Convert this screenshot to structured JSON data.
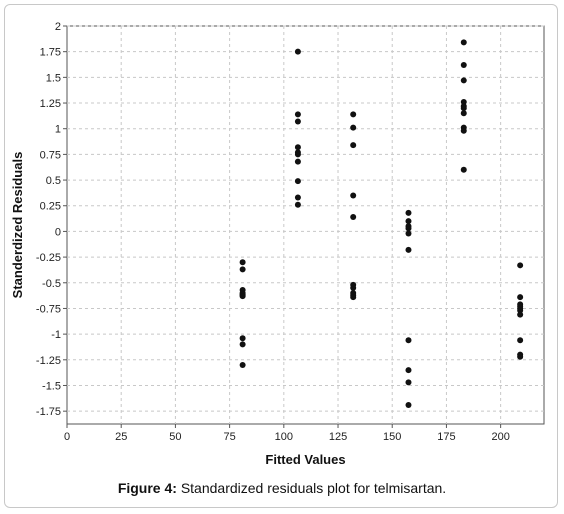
{
  "caption": {
    "label": "Figure 4:",
    "text": " Standardized residuals plot for telmisartan."
  },
  "chart_data": {
    "type": "scatter",
    "title": "",
    "xlabel": "Fitted Values",
    "ylabel": "Standerdized Residuals",
    "xlim": [
      0,
      220
    ],
    "ylim": [
      -1.875,
      2
    ],
    "x_ticks": [
      0,
      25,
      50,
      75,
      100,
      125,
      150,
      175,
      200
    ],
    "y_ticks": [
      2,
      1.75,
      1.5,
      1.25,
      1,
      0.75,
      0.5,
      0.25,
      0,
      -0.25,
      -0.5,
      -0.75,
      -1,
      -1.25,
      -1.5,
      -1.75
    ],
    "x_tick_labels": [
      "0",
      "25",
      "50",
      "75",
      "100",
      "125",
      "150",
      "175",
      "200"
    ],
    "y_tick_labels": [
      "2",
      "1.75",
      "1.5",
      "1.25",
      "1",
      "0.75",
      "0.5",
      "0.25",
      "0",
      "-0.25",
      "-0.5",
      "-0.75",
      "-1",
      "-1.25",
      "-1.5",
      "-1.75"
    ],
    "grid": true,
    "point_color": "#111111",
    "grid_color": "#c8c8c8",
    "series": [
      {
        "x": [
          81,
          81,
          81,
          81,
          81,
          81,
          81,
          81,
          81,
          81,
          106.5,
          106.5,
          106.5,
          106.5,
          106.5,
          106.5,
          106.5,
          106.5,
          106.5,
          106.5,
          132,
          132,
          132,
          132,
          132,
          132,
          132,
          132,
          132,
          132,
          157.5,
          157.5,
          157.5,
          157.5,
          157.5,
          157.5,
          157.5,
          157.5,
          157.5,
          157.5,
          183,
          183,
          183,
          183,
          183,
          183,
          183,
          183,
          183,
          183,
          209,
          209,
          209,
          209,
          209,
          209,
          209,
          209,
          209,
          209
        ],
        "y": [
          -0.3,
          -0.37,
          -0.57,
          -0.6,
          -0.62,
          -1.04,
          -1.1,
          -1.3,
          -0.61,
          -0.63,
          1.75,
          1.14,
          1.07,
          0.82,
          0.75,
          0.68,
          0.49,
          0.33,
          0.26,
          0.77,
          1.14,
          1.01,
          0.84,
          0.35,
          0.14,
          -0.52,
          -0.55,
          -0.6,
          -0.62,
          -0.64,
          0.18,
          0.1,
          0.03,
          -0.02,
          -0.18,
          -1.06,
          -1.35,
          -1.47,
          -1.69,
          0.05,
          1.84,
          1.62,
          1.47,
          1.26,
          1.2,
          1.15,
          1.01,
          0.98,
          0.6,
          1.22,
          -0.33,
          -0.64,
          -0.71,
          -0.75,
          -0.77,
          -0.81,
          -1.06,
          -1.2,
          -1.22,
          -0.73
        ]
      }
    ]
  }
}
